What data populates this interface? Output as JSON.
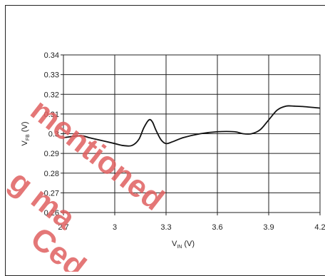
{
  "chart_data": {
    "type": "line",
    "title": "",
    "xlabel": "V",
    "xlabel_sub": "IN",
    "xlabel_unit": "(V)",
    "ylabel": "V",
    "ylabel_sub": "FB",
    "ylabel_unit": "(V)",
    "xlim": [
      2.7,
      4.2
    ],
    "ylim": [
      0.26,
      0.34
    ],
    "xticks": [
      "2.7",
      "3",
      "3.3",
      "3.6",
      "3.9",
      "4.2"
    ],
    "yticks": [
      "0.34",
      "0.33",
      "0.32",
      "0.31",
      "0.3",
      "0.29",
      "0.28",
      "0.27",
      "0.26"
    ],
    "grid": true,
    "series": [
      {
        "color": "#111111",
        "x": [
          2.7,
          2.8,
          2.85,
          2.9,
          3.0,
          3.05,
          3.1,
          3.14,
          3.17,
          3.2,
          3.22,
          3.24,
          3.27,
          3.3,
          3.34,
          3.4,
          3.5,
          3.6,
          3.7,
          3.75,
          3.8,
          3.85,
          3.9,
          3.95,
          4.0,
          4.05,
          4.1,
          4.2
        ],
        "y": [
          0.298,
          0.299,
          0.298,
          0.297,
          0.295,
          0.294,
          0.294,
          0.297,
          0.303,
          0.307,
          0.306,
          0.302,
          0.297,
          0.295,
          0.296,
          0.298,
          0.3,
          0.301,
          0.301,
          0.3,
          0.3,
          0.302,
          0.307,
          0.312,
          0.314,
          0.314,
          0.3138,
          0.313
        ]
      }
    ]
  },
  "watermark": {
    "lines": [
      "mentioned",
      "g ma",
      "Ced"
    ],
    "color": "#e06060"
  }
}
